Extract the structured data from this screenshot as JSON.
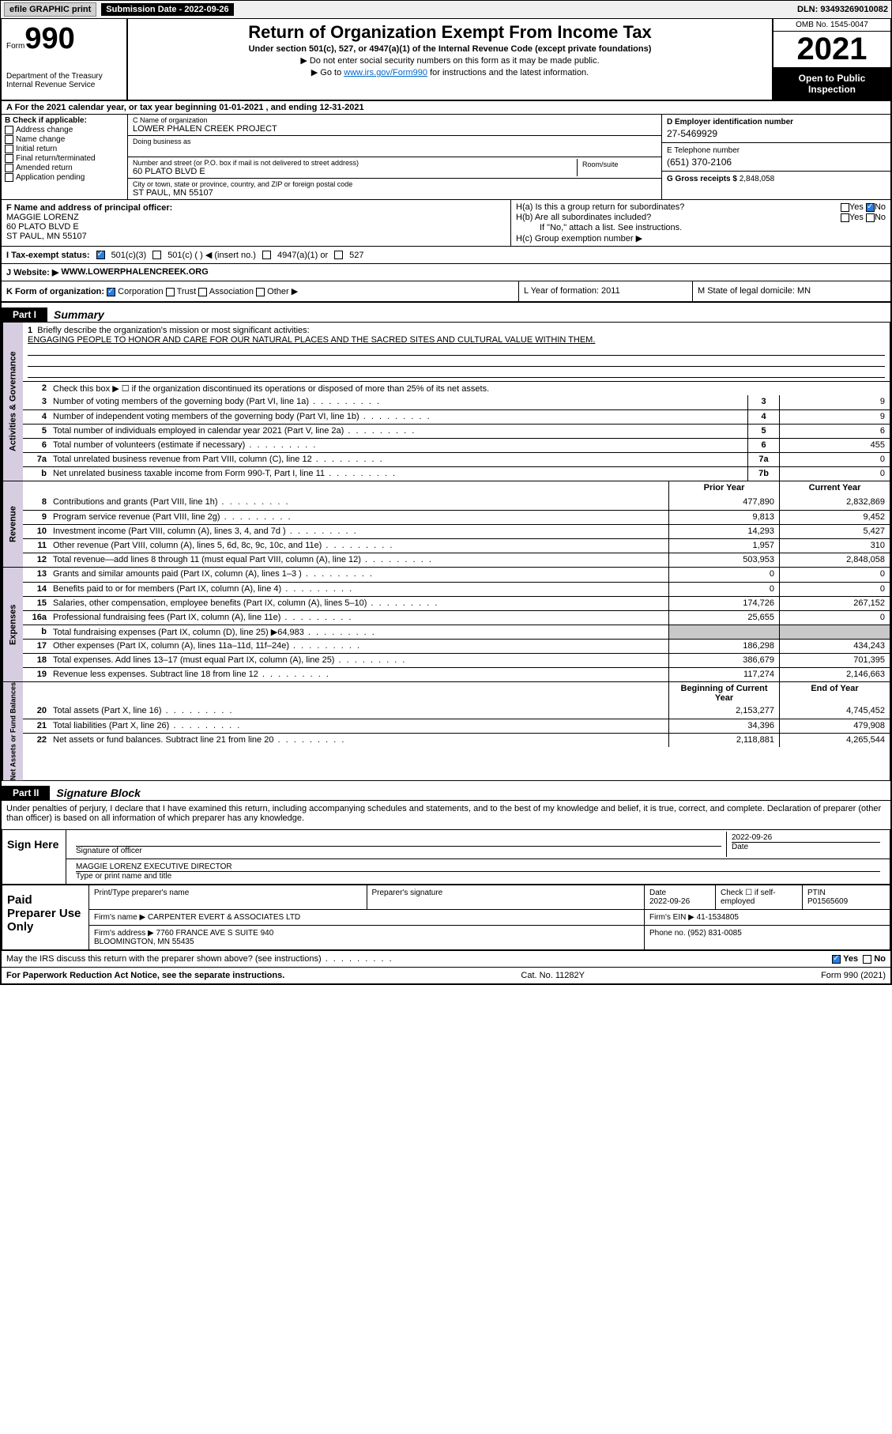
{
  "top": {
    "efile": "efile GRAPHIC print",
    "sub_label": "Submission Date - 2022-09-26",
    "dln": "DLN: 93493269010082"
  },
  "header": {
    "form_word": "Form",
    "form_no": "990",
    "dept": "Department of the Treasury",
    "irs": "Internal Revenue Service",
    "title": "Return of Organization Exempt From Income Tax",
    "sub": "Under section 501(c), 527, or 4947(a)(1) of the Internal Revenue Code (except private foundations)",
    "note1": "▶ Do not enter social security numbers on this form as it may be made public.",
    "note2_pre": "▶ Go to ",
    "note2_link": "www.irs.gov/Form990",
    "note2_post": " for instructions and the latest information.",
    "omb": "OMB No. 1545-0047",
    "year": "2021",
    "open": "Open to Public Inspection"
  },
  "rowA": "A For the 2021 calendar year, or tax year beginning 01-01-2021   , and ending 12-31-2021",
  "B": {
    "title": "B Check if applicable:",
    "opts": [
      "Address change",
      "Name change",
      "Initial return",
      "Final return/terminated",
      "Amended return",
      "Application pending"
    ]
  },
  "C": {
    "name_lbl": "C Name of organization",
    "name": "LOWER PHALEN CREEK PROJECT",
    "dba_lbl": "Doing business as",
    "addr_lbl": "Number and street (or P.O. box if mail is not delivered to street address)",
    "room_lbl": "Room/suite",
    "addr": "60 PLATO BLVD E",
    "city_lbl": "City or town, state or province, country, and ZIP or foreign postal code",
    "city": "ST PAUL, MN  55107"
  },
  "DE": {
    "d_lbl": "D Employer identification number",
    "d_val": "27-5469929",
    "e_lbl": "E Telephone number",
    "e_val": "(651) 370-2106",
    "g_lbl": "G Gross receipts $",
    "g_val": "2,848,058"
  },
  "F": {
    "lbl": "F Name and address of principal officer:",
    "name": "MAGGIE LORENZ",
    "addr1": "60 PLATO BLVD E",
    "addr2": "ST PAUL, MN  55107"
  },
  "H": {
    "a": "H(a)  Is this a group return for subordinates?",
    "b": "H(b)  Are all subordinates included?",
    "b_note": "If \"No,\" attach a list. See instructions.",
    "c": "H(c)  Group exemption number ▶",
    "yes": "Yes",
    "no": "No"
  },
  "I": {
    "lbl": "I   Tax-exempt status:",
    "o1": "501(c)(3)",
    "o2": "501(c) (  ) ◀ (insert no.)",
    "o3": "4947(a)(1) or",
    "o4": "527"
  },
  "J": {
    "lbl": "J   Website: ▶",
    "val": "WWW.LOWERPHALENCREEK.ORG"
  },
  "K": {
    "lbl": "K Form of organization:",
    "o1": "Corporation",
    "o2": "Trust",
    "o3": "Association",
    "o4": "Other ▶",
    "l": "L Year of formation: 2011",
    "m": "M State of legal domicile: MN"
  },
  "part1": {
    "tab": "Part I",
    "title": "Summary"
  },
  "summary": {
    "q1": "Briefly describe the organization's mission or most significant activities:",
    "q1_ans": "ENGAGING PEOPLE TO HONOR AND CARE FOR OUR NATURAL PLACES AND THE SACRED SITES AND CULTURAL VALUE WITHIN THEM.",
    "q2": "Check this box ▶ ☐  if the organization discontinued its operations or disposed of more than 25% of its net assets.",
    "lines_gov": [
      {
        "n": "3",
        "t": "Number of voting members of the governing body (Part VI, line 1a)",
        "box": "3",
        "v": "9"
      },
      {
        "n": "4",
        "t": "Number of independent voting members of the governing body (Part VI, line 1b)",
        "box": "4",
        "v": "9"
      },
      {
        "n": "5",
        "t": "Total number of individuals employed in calendar year 2021 (Part V, line 2a)",
        "box": "5",
        "v": "6"
      },
      {
        "n": "6",
        "t": "Total number of volunteers (estimate if necessary)",
        "box": "6",
        "v": "455"
      },
      {
        "n": "7a",
        "t": "Total unrelated business revenue from Part VIII, column (C), line 12",
        "box": "7a",
        "v": "0"
      },
      {
        "n": "b",
        "t": "Net unrelated business taxable income from Form 990-T, Part I, line 11",
        "box": "7b",
        "v": "0"
      }
    ],
    "hdr_prior": "Prior Year",
    "hdr_curr": "Current Year",
    "rev": [
      {
        "n": "8",
        "t": "Contributions and grants (Part VIII, line 1h)",
        "p": "477,890",
        "c": "2,832,869"
      },
      {
        "n": "9",
        "t": "Program service revenue (Part VIII, line 2g)",
        "p": "9,813",
        "c": "9,452"
      },
      {
        "n": "10",
        "t": "Investment income (Part VIII, column (A), lines 3, 4, and 7d )",
        "p": "14,293",
        "c": "5,427"
      },
      {
        "n": "11",
        "t": "Other revenue (Part VIII, column (A), lines 5, 6d, 8c, 9c, 10c, and 11e)",
        "p": "1,957",
        "c": "310"
      },
      {
        "n": "12",
        "t": "Total revenue—add lines 8 through 11 (must equal Part VIII, column (A), line 12)",
        "p": "503,953",
        "c": "2,848,058"
      }
    ],
    "exp": [
      {
        "n": "13",
        "t": "Grants and similar amounts paid (Part IX, column (A), lines 1–3 )",
        "p": "0",
        "c": "0"
      },
      {
        "n": "14",
        "t": "Benefits paid to or for members (Part IX, column (A), line 4)",
        "p": "0",
        "c": "0"
      },
      {
        "n": "15",
        "t": "Salaries, other compensation, employee benefits (Part IX, column (A), lines 5–10)",
        "p": "174,726",
        "c": "267,152"
      },
      {
        "n": "16a",
        "t": "Professional fundraising fees (Part IX, column (A), line 11e)",
        "p": "25,655",
        "c": "0"
      },
      {
        "n": "b",
        "t": "Total fundraising expenses (Part IX, column (D), line 25) ▶64,983",
        "p": "",
        "c": "",
        "shade": true
      },
      {
        "n": "17",
        "t": "Other expenses (Part IX, column (A), lines 11a–11d, 11f–24e)",
        "p": "186,298",
        "c": "434,243"
      },
      {
        "n": "18",
        "t": "Total expenses. Add lines 13–17 (must equal Part IX, column (A), line 25)",
        "p": "386,679",
        "c": "701,395"
      },
      {
        "n": "19",
        "t": "Revenue less expenses. Subtract line 18 from line 12",
        "p": "117,274",
        "c": "2,146,663"
      }
    ],
    "hdr_beg": "Beginning of Current Year",
    "hdr_end": "End of Year",
    "net": [
      {
        "n": "20",
        "t": "Total assets (Part X, line 16)",
        "p": "2,153,277",
        "c": "4,745,452"
      },
      {
        "n": "21",
        "t": "Total liabilities (Part X, line 26)",
        "p": "34,396",
        "c": "479,908"
      },
      {
        "n": "22",
        "t": "Net assets or fund balances. Subtract line 21 from line 20",
        "p": "2,118,881",
        "c": "4,265,544"
      }
    ],
    "side_gov": "Activities & Governance",
    "side_rev": "Revenue",
    "side_exp": "Expenses",
    "side_net": "Net Assets or Fund Balances"
  },
  "part2": {
    "tab": "Part II",
    "title": "Signature Block"
  },
  "sig": {
    "decl": "Under penalties of perjury, I declare that I have examined this return, including accompanying schedules and statements, and to the best of my knowledge and belief, it is true, correct, and complete. Declaration of preparer (other than officer) is based on all information of which preparer has any knowledge.",
    "sign_here": "Sign Here",
    "sig_officer": "Signature of officer",
    "date": "Date",
    "date_val": "2022-09-26",
    "name_title": "MAGGIE LORENZ  EXECUTIVE DIRECTOR",
    "name_title_lbl": "Type or print name and title",
    "paid": "Paid Preparer Use Only",
    "prep_name_lbl": "Print/Type preparer's name",
    "prep_sig_lbl": "Preparer's signature",
    "prep_date_lbl": "Date",
    "prep_date": "2022-09-26",
    "check_if": "Check ☐ if self-employed",
    "ptin_lbl": "PTIN",
    "ptin": "P01565609",
    "firm_name_lbl": "Firm's name    ▶",
    "firm_name": "CARPENTER EVERT & ASSOCIATES LTD",
    "firm_ein_lbl": "Firm's EIN ▶",
    "firm_ein": "41-1534805",
    "firm_addr_lbl": "Firm's address ▶",
    "firm_addr1": "7760 FRANCE AVE S SUITE 940",
    "firm_addr2": "BLOOMINGTON, MN  55435",
    "phone_lbl": "Phone no.",
    "phone": "(952) 831-0085",
    "discuss": "May the IRS discuss this return with the preparer shown above? (see instructions)"
  },
  "footer": {
    "left": "For Paperwork Reduction Act Notice, see the separate instructions.",
    "mid": "Cat. No. 11282Y",
    "right": "Form 990 (2021)"
  }
}
